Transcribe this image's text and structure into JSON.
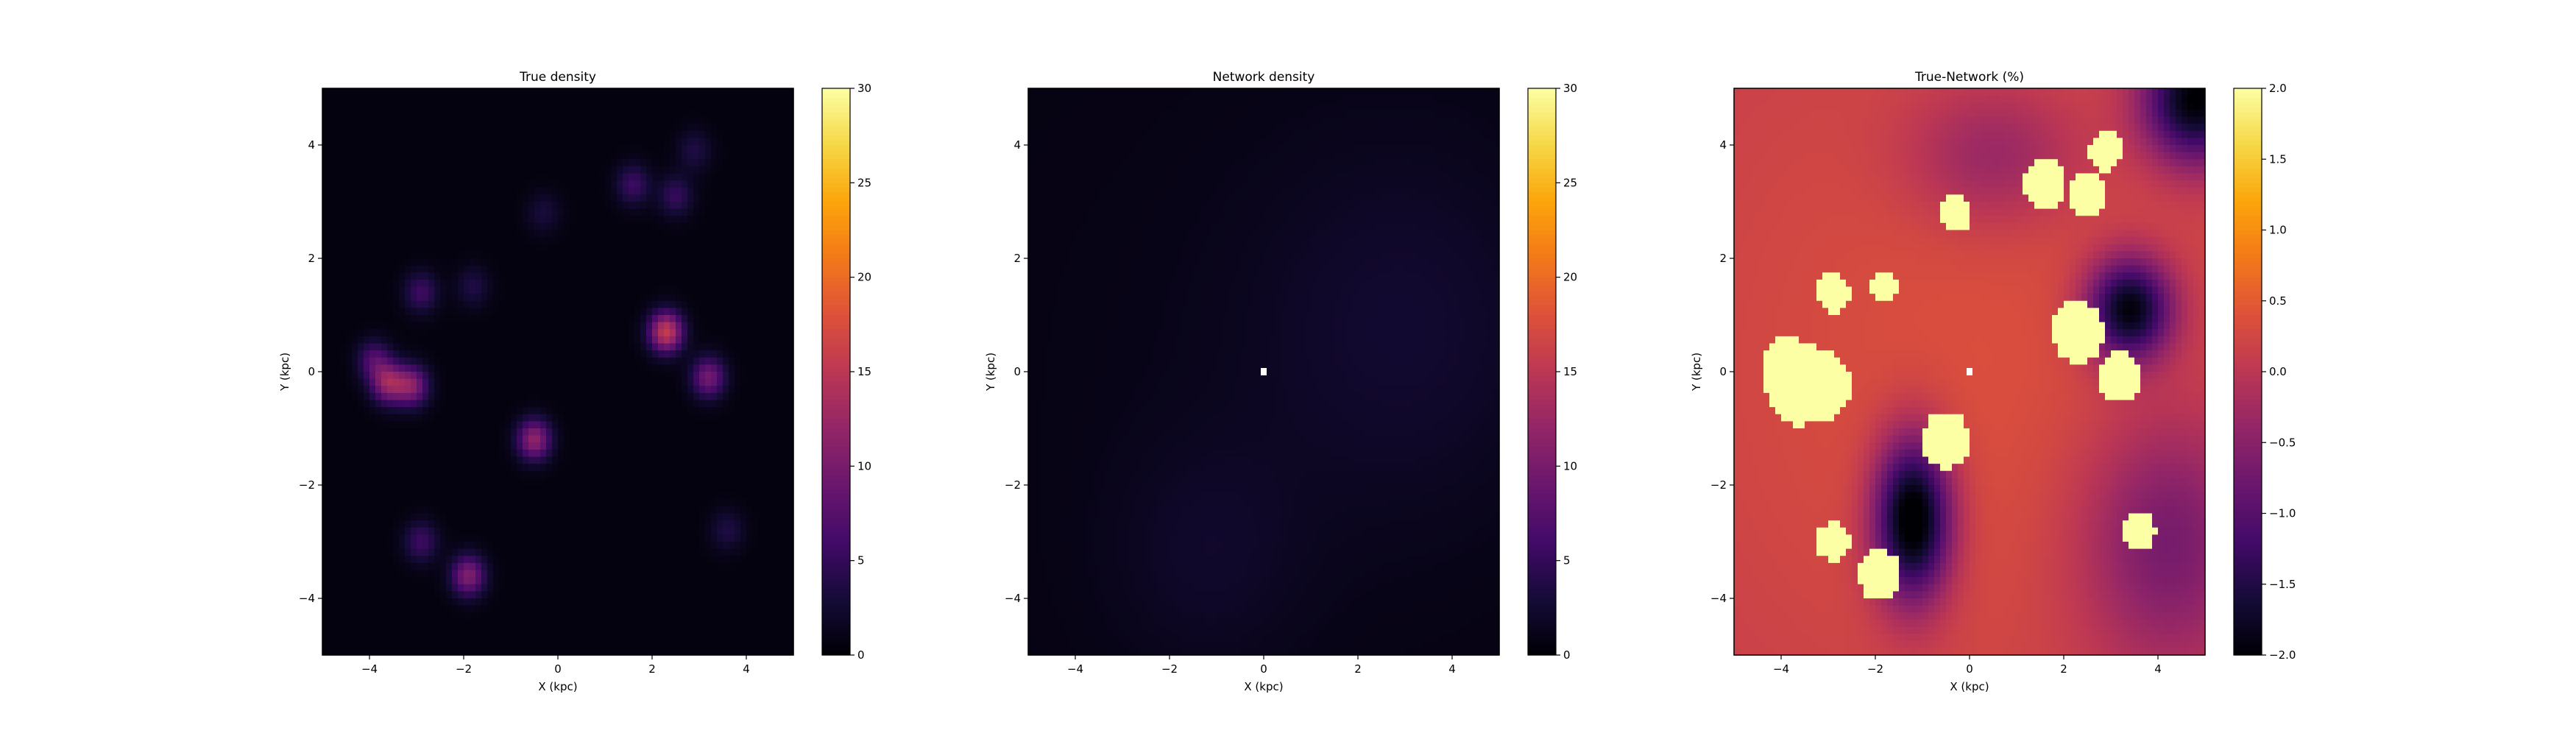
{
  "chart_data": [
    {
      "type": "heatmap",
      "title": "True density",
      "xlabel": "X (kpc)",
      "ylabel": "Y (kpc)",
      "xlim": [
        -5,
        5
      ],
      "ylim": [
        -5,
        5
      ],
      "xticks": [
        -4,
        -2,
        0,
        2,
        4
      ],
      "yticks": [
        -4,
        -2,
        0,
        2,
        4
      ],
      "xtick_labels": [
        "−4",
        "−2",
        "0",
        "2",
        "4"
      ],
      "ytick_labels": [
        "−4",
        "−2",
        "0",
        "2",
        "4"
      ],
      "colormap": "inferno",
      "color_range": [
        0,
        30
      ],
      "colorbar_ticks": [
        0,
        5,
        10,
        15,
        20,
        25,
        30
      ],
      "colorbar_tick_labels": [
        "0",
        "5",
        "10",
        "15",
        "20",
        "25",
        "30"
      ],
      "grid": false,
      "blobs": [
        {
          "x": -3.6,
          "y": -0.2,
          "peak": 11
        },
        {
          "x": -3.1,
          "y": -0.25,
          "peak": 10
        },
        {
          "x": -3.9,
          "y": 0.2,
          "peak": 6
        },
        {
          "x": -2.9,
          "y": 1.4,
          "peak": 5
        },
        {
          "x": -1.8,
          "y": 1.5,
          "peak": 3
        },
        {
          "x": -0.3,
          "y": 2.8,
          "peak": 2.5
        },
        {
          "x": 1.6,
          "y": 3.3,
          "peak": 5
        },
        {
          "x": 2.5,
          "y": 3.1,
          "peak": 4.5
        },
        {
          "x": 2.9,
          "y": 3.9,
          "peak": 3
        },
        {
          "x": 2.3,
          "y": 0.7,
          "peak": 15
        },
        {
          "x": 3.2,
          "y": -0.1,
          "peak": 9
        },
        {
          "x": -0.5,
          "y": -1.2,
          "peak": 11
        },
        {
          "x": -2.9,
          "y": -3.0,
          "peak": 5
        },
        {
          "x": -1.9,
          "y": -3.6,
          "peak": 10
        },
        {
          "x": 3.6,
          "y": -2.8,
          "peak": 3
        }
      ],
      "background": 0.6
    },
    {
      "type": "heatmap",
      "title": "Network density",
      "xlabel": "X (kpc)",
      "ylabel": "Y (kpc)",
      "xlim": [
        -5,
        5
      ],
      "ylim": [
        -5,
        5
      ],
      "xticks": [
        -4,
        -2,
        0,
        2,
        4
      ],
      "yticks": [
        -4,
        -2,
        0,
        2,
        4
      ],
      "xtick_labels": [
        "−4",
        "−2",
        "0",
        "2",
        "4"
      ],
      "ytick_labels": [
        "−4",
        "−2",
        "0",
        "2",
        "4"
      ],
      "colormap": "inferno",
      "color_range": [
        0,
        30
      ],
      "colorbar_ticks": [
        0,
        5,
        10,
        15,
        20,
        25,
        30
      ],
      "colorbar_tick_labels": [
        "0",
        "5",
        "10",
        "15",
        "20",
        "25",
        "30"
      ],
      "grid": false,
      "background": 0.8,
      "features": [
        {
          "x": 3.0,
          "y": 0.8,
          "peak": 1.5,
          "spread": 2.2
        },
        {
          "x": -1.2,
          "y": -3.2,
          "peak": 1.2,
          "spread": 1.4
        }
      ],
      "masked_center": [
        0,
        0
      ]
    },
    {
      "type": "heatmap",
      "title": "True-Network (%)",
      "xlabel": "X (kpc)",
      "ylabel": "Y (kpc)",
      "xlim": [
        -5,
        5
      ],
      "ylim": [
        -5,
        5
      ],
      "xticks": [
        -4,
        -2,
        0,
        2,
        4
      ],
      "yticks": [
        -4,
        -2,
        0,
        2,
        4
      ],
      "xtick_labels": [
        "−4",
        "−2",
        "0",
        "2",
        "4"
      ],
      "ytick_labels": [
        "−4",
        "−2",
        "0",
        "2",
        "4"
      ],
      "colormap": "inferno",
      "color_range": [
        -2.0,
        2.0
      ],
      "colorbar_ticks": [
        -2.0,
        -1.5,
        -1.0,
        -0.5,
        0.0,
        0.5,
        1.0,
        1.5,
        2.0
      ],
      "colorbar_tick_labels": [
        "−2.0",
        "−1.5",
        "−1.0",
        "−0.5",
        "0.0",
        "0.5",
        "1.0",
        "1.5",
        "2.0"
      ],
      "grid": false,
      "background": 0.1,
      "saturated_spots": [
        {
          "x": -3.6,
          "y": -0.2,
          "r": 0.75
        },
        {
          "x": -3.1,
          "y": -0.25,
          "r": 0.6
        },
        {
          "x": -3.9,
          "y": 0.2,
          "r": 0.45
        },
        {
          "x": -2.9,
          "y": 1.4,
          "r": 0.35
        },
        {
          "x": -1.8,
          "y": 1.5,
          "r": 0.3
        },
        {
          "x": -0.3,
          "y": 2.8,
          "r": 0.35
        },
        {
          "x": 1.6,
          "y": 3.3,
          "r": 0.45
        },
        {
          "x": 2.5,
          "y": 3.1,
          "r": 0.4
        },
        {
          "x": 2.9,
          "y": 3.9,
          "r": 0.35
        },
        {
          "x": 2.3,
          "y": 0.7,
          "r": 0.55
        },
        {
          "x": 3.2,
          "y": -0.1,
          "r": 0.45
        },
        {
          "x": -0.5,
          "y": -1.2,
          "r": 0.5
        },
        {
          "x": -2.9,
          "y": -3.0,
          "r": 0.35
        },
        {
          "x": -1.9,
          "y": -3.6,
          "r": 0.45
        },
        {
          "x": 3.6,
          "y": -2.8,
          "r": 0.35
        }
      ],
      "negative_regions": [
        {
          "x": -1.2,
          "y": -2.6,
          "rx": 0.8,
          "ry": 1.4,
          "depth": -2.5
        },
        {
          "x": 3.4,
          "y": 1.1,
          "rx": 0.9,
          "ry": 0.9,
          "depth": -2.2
        },
        {
          "x": 4.8,
          "y": 4.8,
          "rx": 1.1,
          "ry": 1.1,
          "depth": -2.2
        },
        {
          "x": 4.2,
          "y": -3.0,
          "rx": 1.8,
          "ry": 2.2,
          "depth": -0.9
        },
        {
          "x": 0.5,
          "y": 3.8,
          "rx": 1.8,
          "ry": 1.2,
          "depth": -0.6
        }
      ],
      "masked_center": [
        0,
        0
      ]
    }
  ]
}
